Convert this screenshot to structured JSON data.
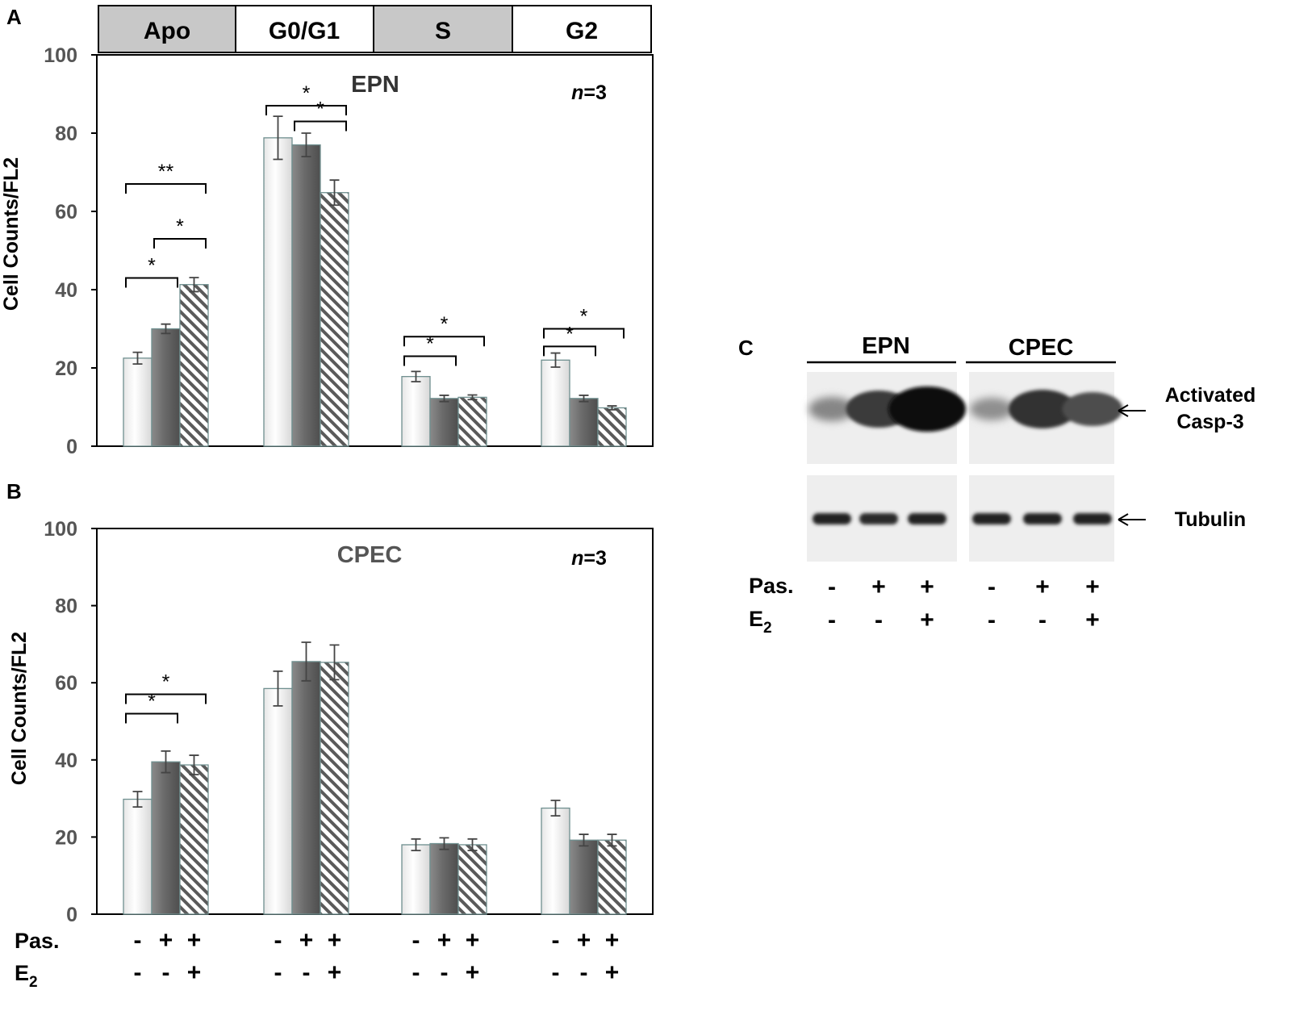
{
  "panels": {
    "A": {
      "letter": "A",
      "title": "EPN",
      "n_prefix": "n",
      "n_suffix": "=3"
    },
    "B": {
      "letter": "B",
      "title": "CPEC",
      "n_prefix": "n",
      "n_suffix": "=3"
    },
    "C": {
      "letter": "C",
      "group_labels": [
        "EPN",
        "CPEC"
      ],
      "band_label_casp_line1": "Activated",
      "band_label_casp_line2": "Casp-3",
      "band_label_tubulin": "Tubulin",
      "row_pas": "Pas.",
      "row_e2": "E",
      "row_e2_sub": "2",
      "pas_signs": [
        "-",
        "+",
        "+",
        "-",
        "+",
        "+"
      ],
      "e2_signs": [
        "-",
        "-",
        "+",
        "-",
        "-",
        "+"
      ],
      "casp3_intensity": [
        0.35,
        0.75,
        1.0,
        0.3,
        0.8,
        0.65
      ],
      "tubulin_intensity": [
        0.85,
        0.75,
        0.85,
        0.85,
        0.85,
        0.85
      ]
    }
  },
  "phase_header": [
    "Apo",
    "G0/G1",
    "S",
    "G2"
  ],
  "ylabel": "Cell Counts/FL2",
  "row_pas": "Pas.",
  "row_e2": "E",
  "row_e2_sub": "2",
  "pas_signs": [
    "-",
    "+",
    "+"
  ],
  "e2_signs": [
    "-",
    "-",
    "+"
  ],
  "colors": {
    "white_bar": "#ffffff",
    "gray_bar": "#6e6e6e",
    "hatch": "#5a5a5a",
    "header_gray": "#c8c8c8",
    "tick_gray": "#555555"
  },
  "chart_data": [
    {
      "type": "bar",
      "panel": "A",
      "title": "EPN",
      "ylabel": "Cell Counts/FL2",
      "categories": [
        "Apo",
        "G0/G1",
        "S",
        "G2"
      ],
      "ylim": [
        0,
        100
      ],
      "yticks": [
        0,
        20,
        40,
        60,
        80,
        100
      ],
      "series": [
        {
          "treatment": "Pas. - / E2 -",
          "values": [
            22.5,
            78.8,
            17.8,
            22.0
          ],
          "errors": [
            1.5,
            5.5,
            1.3,
            1.8
          ]
        },
        {
          "treatment": "Pas. + / E2 -",
          "values": [
            30.0,
            77.0,
            12.2,
            12.2
          ],
          "errors": [
            1.2,
            3.0,
            0.8,
            0.8
          ]
        },
        {
          "treatment": "Pas. + / E2 +",
          "values": [
            41.3,
            64.8,
            12.5,
            9.8
          ],
          "errors": [
            1.8,
            3.2,
            0.6,
            0.5
          ]
        }
      ],
      "significance": [
        {
          "group": 0,
          "from": 0,
          "to": 1,
          "label": "*",
          "level": 43
        },
        {
          "group": 0,
          "from": 1,
          "to": 2,
          "label": "*",
          "level": 53
        },
        {
          "group": 0,
          "from": 0,
          "to": 2,
          "label": "**",
          "level": 67
        },
        {
          "group": 1,
          "from": 0,
          "to": 2,
          "label": "*",
          "level": 87
        },
        {
          "group": 1,
          "from": 1,
          "to": 2,
          "label": "*",
          "level": 83
        },
        {
          "group": 2,
          "from": 0,
          "to": 1,
          "label": "*",
          "level": 23
        },
        {
          "group": 2,
          "from": 0,
          "to": 2,
          "label": "*",
          "level": 28
        },
        {
          "group": 3,
          "from": 0,
          "to": 1,
          "label": "*",
          "level": 25.5
        },
        {
          "group": 3,
          "from": 0,
          "to": 2,
          "label": "*",
          "level": 30
        }
      ]
    },
    {
      "type": "bar",
      "panel": "B",
      "title": "CPEC",
      "ylabel": "Cell Counts/FL2",
      "categories": [
        "Apo",
        "G0/G1",
        "S",
        "G2"
      ],
      "ylim": [
        0,
        100
      ],
      "yticks": [
        0,
        20,
        40,
        60,
        80,
        100
      ],
      "series": [
        {
          "treatment": "Pas. - / E2 -",
          "values": [
            29.8,
            58.5,
            18.0,
            27.5
          ],
          "errors": [
            2.0,
            4.5,
            1.5,
            2.0
          ]
        },
        {
          "treatment": "Pas. + / E2 -",
          "values": [
            39.5,
            65.5,
            18.3,
            19.2
          ],
          "errors": [
            2.8,
            5.0,
            1.5,
            1.5
          ]
        },
        {
          "treatment": "Pas. + / E2 +",
          "values": [
            38.7,
            65.3,
            18.0,
            19.2
          ],
          "errors": [
            2.5,
            4.5,
            1.5,
            1.5
          ]
        }
      ],
      "significance": [
        {
          "group": 0,
          "from": 0,
          "to": 1,
          "label": "*",
          "level": 52
        },
        {
          "group": 0,
          "from": 0,
          "to": 2,
          "label": "*",
          "level": 57
        }
      ]
    }
  ]
}
